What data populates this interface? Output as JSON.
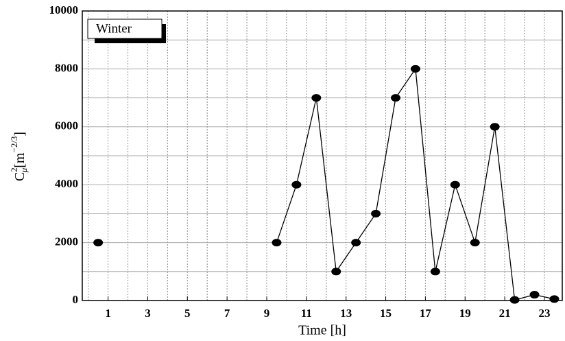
{
  "chart_data": {
    "type": "line",
    "x_label": "Time [h]",
    "y_label": {
      "base": "C",
      "sup": "2",
      "sub": "μ",
      "unit": "[m",
      "unit_exp": "−2/3",
      "close": "]"
    },
    "x": [
      0.5,
      1.5,
      2.5,
      3.5,
      4.5,
      5.5,
      6.5,
      7.5,
      8.5,
      9.5,
      10.5,
      11.5,
      12.5,
      13.5,
      14.5,
      15.5,
      16.5,
      17.5,
      18.5,
      19.5,
      20.5,
      21.5,
      22.5,
      23.5
    ],
    "series": [
      {
        "name": "Winter",
        "color": "#000000",
        "values": [
          2000,
          null,
          null,
          null,
          null,
          null,
          null,
          null,
          null,
          2000,
          4000,
          7000,
          1000,
          2000,
          3000,
          7000,
          8000,
          1000,
          4000,
          2000,
          6000,
          20,
          200,
          50
        ]
      }
    ],
    "xlim": [
      -0.3,
      23.9
    ],
    "xticks": [
      1,
      3,
      5,
      7,
      9,
      11,
      13,
      15,
      17,
      19,
      21,
      23
    ],
    "ylim": [
      0,
      10000
    ],
    "yticks": [
      0,
      2000,
      4000,
      6000,
      8000,
      10000
    ],
    "grid": true,
    "legend": "upper-left"
  }
}
